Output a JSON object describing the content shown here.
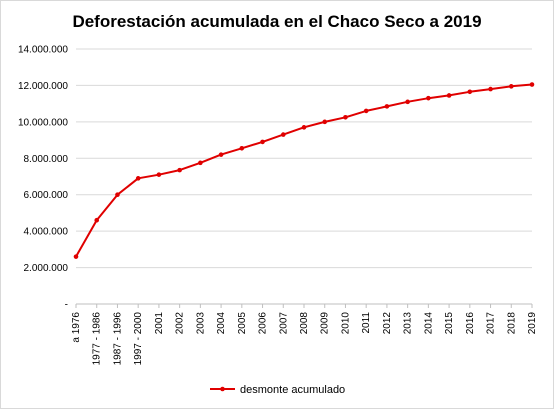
{
  "chart_data": {
    "type": "line",
    "title": "Deforestación acumulada en el Chaco Seco a 2019",
    "categories": [
      "a 1976",
      "1977 - 1986",
      "1987 - 1996",
      "1997 - 2000",
      "2001",
      "2002",
      "2003",
      "2004",
      "2005",
      "2006",
      "2007",
      "2008",
      "2009",
      "2010",
      "2011",
      "2012",
      "2013",
      "2014",
      "2015",
      "2016",
      "2017",
      "2018",
      "2019"
    ],
    "series": [
      {
        "name": "desmonte acumulado",
        "color": "#e00000",
        "values": [
          2600000,
          4600000,
          6000000,
          6900000,
          7100000,
          7350000,
          7750000,
          8200000,
          8550000,
          8900000,
          9300000,
          9700000,
          10000000,
          10250000,
          10600000,
          10850000,
          11100000,
          11300000,
          11450000,
          11650000,
          11800000,
          11950000,
          12050000
        ]
      }
    ],
    "ylim": [
      0,
      14000000
    ],
    "yticks": [
      0,
      2000000,
      4000000,
      6000000,
      8000000,
      10000000,
      12000000,
      14000000
    ],
    "ytick_labels": [
      "-",
      "2.000.000",
      "4.000.000",
      "6.000.000",
      "8.000.000",
      "10.000.000",
      "12.000.000",
      "14.000.000"
    ],
    "xlabel": "",
    "ylabel": "",
    "grid": true,
    "legend_position": "bottom"
  }
}
